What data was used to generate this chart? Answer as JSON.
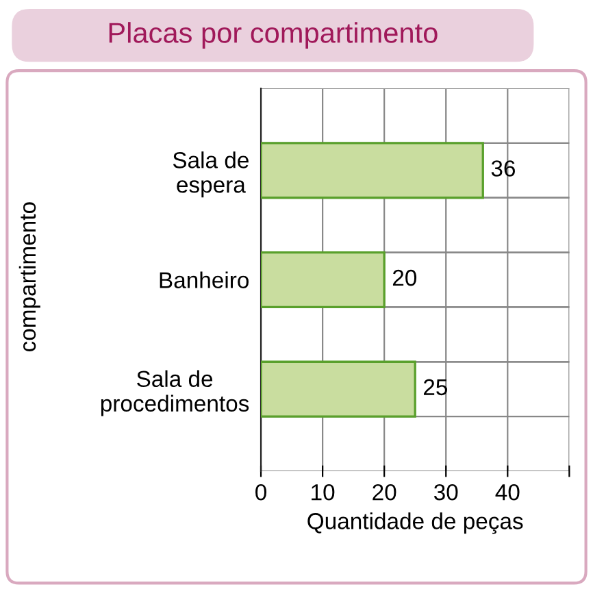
{
  "chart_data": {
    "type": "bar",
    "orientation": "horizontal",
    "title": "Placas por compartimento",
    "xlabel": "Quantidade de peças",
    "ylabel": "compartimento",
    "categories": [
      "Sala de\nespera",
      "Banheiro",
      "Sala de\nprocedimentos"
    ],
    "values": [
      36,
      20,
      25
    ],
    "color": "#c9dd9f",
    "xlim": [
      0,
      50
    ],
    "xticks": [
      0,
      10,
      20,
      30,
      40,
      {
        "value": 50,
        "label": null
      }
    ],
    "grid": true,
    "data_labels": true
  }
}
